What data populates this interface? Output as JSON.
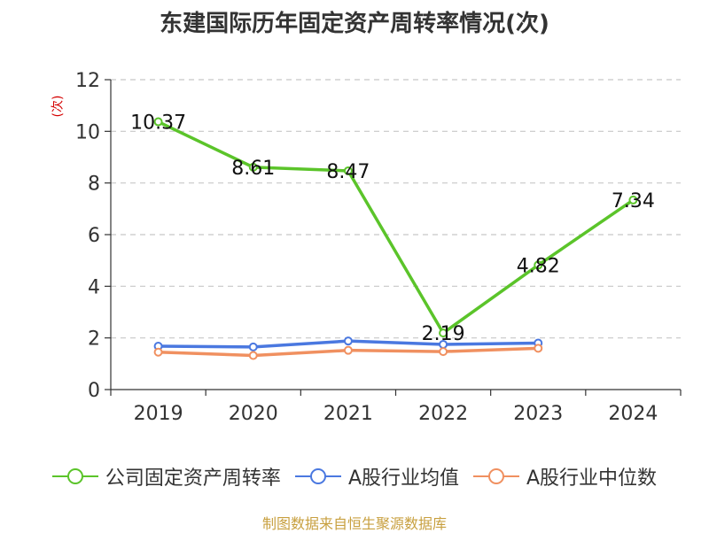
{
  "chart_data": {
    "type": "line",
    "title": "东建国际历年固定资产周转率情况(次)",
    "ylabel": "(次)",
    "categories": [
      "2019",
      "2020",
      "2021",
      "2022",
      "2023",
      "2024"
    ],
    "ylim": [
      0,
      12
    ],
    "yticks": [
      0,
      2,
      4,
      6,
      8,
      10,
      12
    ],
    "grid": true,
    "legend_position": "bottom",
    "series": [
      {
        "name": "公司固定资产周转率",
        "color": "#5bc42a",
        "values": [
          10.37,
          8.61,
          8.47,
          2.19,
          4.82,
          7.34
        ],
        "labels": [
          "10.37",
          "8.61",
          "8.47",
          "2.19",
          "4.82",
          "7.34"
        ]
      },
      {
        "name": "A股行业均值",
        "color": "#4a78e0",
        "values": [
          1.68,
          1.65,
          1.88,
          1.75,
          1.8,
          null
        ]
      },
      {
        "name": "A股行业中位数",
        "color": "#f09060",
        "values": [
          1.45,
          1.32,
          1.52,
          1.47,
          1.6,
          null
        ]
      }
    ],
    "source": "制图数据来自恒生聚源数据库"
  }
}
